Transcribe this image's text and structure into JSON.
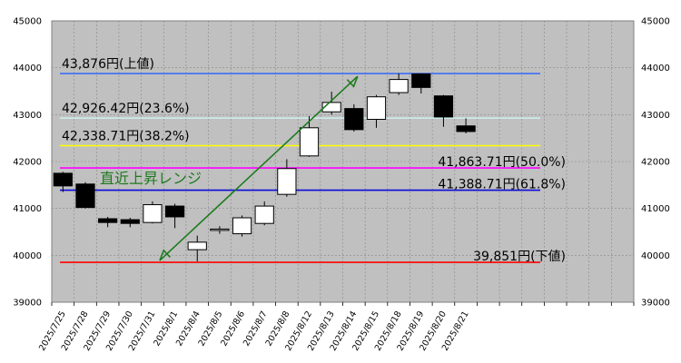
{
  "chart_data": {
    "type": "candlestick",
    "ylim": [
      39000,
      45000
    ],
    "yticks": [
      39000,
      40000,
      41000,
      42000,
      43000,
      44000,
      45000
    ],
    "grid": true,
    "categories": [
      "2025/7/25",
      "2025/7/28",
      "2025/7/29",
      "2025/7/30",
      "2025/7/31",
      "2025/8/1",
      "2025/8/4",
      "2025/8/5",
      "2025/8/6",
      "2025/8/7",
      "2025/8/8",
      "2025/8/12",
      "2025/8/13",
      "2025/8/14",
      "2025/8/15",
      "2025/8/18",
      "2025/8/19",
      "2025/8/20",
      "2025/8/21"
    ],
    "total_slots": 26,
    "candles": [
      {
        "o": 41750,
        "h": 41780,
        "l": 41350,
        "c": 41480
      },
      {
        "o": 41520,
        "h": 41560,
        "l": 41000,
        "c": 41020
      },
      {
        "o": 40780,
        "h": 40820,
        "l": 40600,
        "c": 40700
      },
      {
        "o": 40760,
        "h": 40800,
        "l": 40600,
        "c": 40680
      },
      {
        "o": 40700,
        "h": 41150,
        "l": 40680,
        "c": 41080
      },
      {
        "o": 41050,
        "h": 41100,
        "l": 40580,
        "c": 40820
      },
      {
        "o": 40120,
        "h": 40420,
        "l": 39870,
        "c": 40280
      },
      {
        "o": 40540,
        "h": 40620,
        "l": 40460,
        "c": 40560
      },
      {
        "o": 40460,
        "h": 40850,
        "l": 40400,
        "c": 40800
      },
      {
        "o": 40680,
        "h": 41150,
        "l": 40640,
        "c": 41050
      },
      {
        "o": 41300,
        "h": 42050,
        "l": 41250,
        "c": 41850
      },
      {
        "o": 42120,
        "h": 42970,
        "l": 42100,
        "c": 42720
      },
      {
        "o": 43060,
        "h": 43490,
        "l": 43000,
        "c": 43260
      },
      {
        "o": 43130,
        "h": 43220,
        "l": 42640,
        "c": 42680
      },
      {
        "o": 42900,
        "h": 43420,
        "l": 42720,
        "c": 43380
      },
      {
        "o": 43470,
        "h": 43880,
        "l": 43420,
        "c": 43750
      },
      {
        "o": 43870,
        "h": 43880,
        "l": 43450,
        "c": 43580
      },
      {
        "o": 43400,
        "h": 43420,
        "l": 42740,
        "c": 42950
      },
      {
        "o": 42760,
        "h": 42920,
        "l": 42600,
        "c": 42640
      }
    ],
    "levels": [
      {
        "value": 43876,
        "label": "43,876円(上値)",
        "color": "#3f6df5",
        "label_pos": "left"
      },
      {
        "value": 42926.42,
        "label": "42,926.42円(23.6%)",
        "color": "#cff0ef",
        "label_pos": "left"
      },
      {
        "value": 42338.71,
        "label": "42,338.71円(38.2%)",
        "color": "#ffff00",
        "label_pos": "left"
      },
      {
        "value": 41863.71,
        "label": "41,863.71円(50.0%)",
        "color": "#ff00ff",
        "label_pos": "right"
      },
      {
        "value": 41388.71,
        "label": "41,388.71円(61.8%)",
        "color": "#0a0ad8",
        "label_pos": "right"
      },
      {
        "value": 39851,
        "label": "39,851円(下値)",
        "color": "#ff0000",
        "label_pos": "right"
      }
    ],
    "annotation": {
      "text": "直近上昇レンジ",
      "arrow_from": {
        "category": "2025/7/31",
        "value": 39851
      },
      "arrow_to": {
        "category": "2025/8/14",
        "value": 43876
      }
    },
    "colors": {
      "plot_bg": "#c0c0c0",
      "grid": "#888888",
      "up": "#ffffff",
      "down": "#000000",
      "arrow": "#1e7a1e"
    }
  }
}
